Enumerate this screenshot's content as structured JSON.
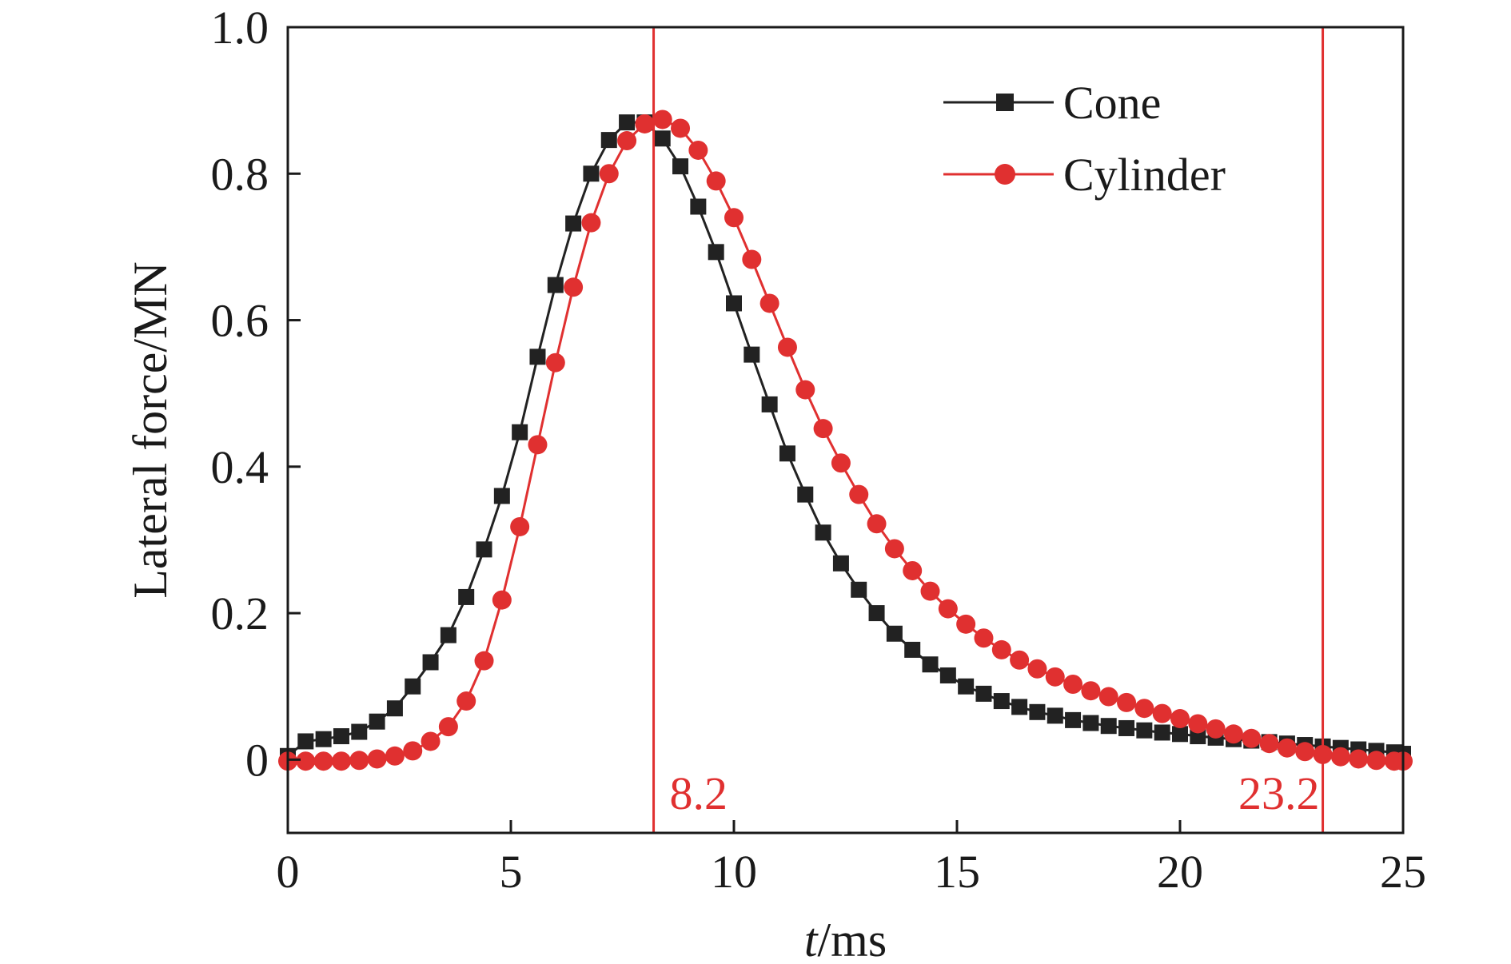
{
  "chart_data": {
    "type": "line",
    "xlabel_italic": "t",
    "xlabel_rest": "/ms",
    "ylabel": "Lateral force/MN",
    "xlim": [
      0,
      25
    ],
    "ylim": [
      -0.1,
      1.0
    ],
    "xticks": [
      0,
      5,
      10,
      15,
      20,
      25
    ],
    "xtick_labels": [
      "0",
      "5",
      "10",
      "15",
      "20",
      "25"
    ],
    "yticks": [
      0,
      0.2,
      0.4,
      0.6,
      0.8,
      1.0
    ],
    "ytick_labels": [
      "0",
      "0.2",
      "0.4",
      "0.6",
      "0.8",
      "1.0"
    ],
    "grid": false,
    "legend_position": "top-right",
    "series": [
      {
        "name": "Cone",
        "color": "#222222",
        "marker": "square",
        "x": [
          0,
          0.4,
          0.8,
          1.2,
          1.6,
          2.0,
          2.4,
          2.8,
          3.2,
          3.6,
          4.0,
          4.4,
          4.8,
          5.2,
          5.6,
          6.0,
          6.4,
          6.8,
          7.2,
          7.6,
          8.0,
          8.4,
          8.8,
          9.2,
          9.6,
          10.0,
          10.4,
          10.8,
          11.2,
          11.6,
          12.0,
          12.4,
          12.8,
          13.2,
          13.6,
          14.0,
          14.4,
          14.8,
          15.2,
          15.6,
          16.0,
          16.4,
          16.8,
          17.2,
          17.6,
          18.0,
          18.4,
          18.8,
          19.2,
          19.6,
          20.0,
          20.4,
          20.8,
          21.2,
          21.6,
          22.0,
          22.4,
          22.8,
          23.2,
          23.6,
          24.0,
          24.4,
          24.8,
          25.0
        ],
        "y": [
          0.005,
          0.025,
          0.028,
          0.032,
          0.038,
          0.052,
          0.07,
          0.1,
          0.133,
          0.17,
          0.222,
          0.287,
          0.36,
          0.447,
          0.55,
          0.648,
          0.732,
          0.8,
          0.846,
          0.87,
          0.87,
          0.848,
          0.81,
          0.755,
          0.693,
          0.623,
          0.553,
          0.485,
          0.418,
          0.362,
          0.31,
          0.268,
          0.232,
          0.2,
          0.172,
          0.15,
          0.13,
          0.115,
          0.1,
          0.09,
          0.08,
          0.072,
          0.065,
          0.06,
          0.054,
          0.05,
          0.046,
          0.043,
          0.04,
          0.037,
          0.035,
          0.032,
          0.03,
          0.028,
          0.026,
          0.024,
          0.022,
          0.02,
          0.018,
          0.016,
          0.014,
          0.012,
          0.01,
          0.008
        ]
      },
      {
        "name": "Cylinder",
        "color": "#e03030",
        "marker": "circle",
        "x": [
          0,
          0.4,
          0.8,
          1.2,
          1.6,
          2.0,
          2.4,
          2.8,
          3.2,
          3.6,
          4.0,
          4.4,
          4.8,
          5.2,
          5.6,
          6.0,
          6.4,
          6.8,
          7.2,
          7.6,
          8.0,
          8.4,
          8.8,
          9.2,
          9.6,
          10.0,
          10.4,
          10.8,
          11.2,
          11.6,
          12.0,
          12.4,
          12.8,
          13.2,
          13.6,
          14.0,
          14.4,
          14.8,
          15.2,
          15.6,
          16.0,
          16.4,
          16.8,
          17.2,
          17.6,
          18.0,
          18.4,
          18.8,
          19.2,
          19.6,
          20.0,
          20.4,
          20.8,
          21.2,
          21.6,
          22.0,
          22.4,
          22.8,
          23.2,
          23.6,
          24.0,
          24.4,
          24.8,
          25.0
        ],
        "y": [
          -0.002,
          -0.002,
          -0.002,
          -0.002,
          -0.001,
          0.001,
          0.005,
          0.012,
          0.025,
          0.045,
          0.08,
          0.135,
          0.218,
          0.318,
          0.43,
          0.542,
          0.645,
          0.733,
          0.8,
          0.845,
          0.868,
          0.874,
          0.862,
          0.832,
          0.79,
          0.74,
          0.683,
          0.623,
          0.563,
          0.505,
          0.452,
          0.405,
          0.362,
          0.322,
          0.288,
          0.258,
          0.23,
          0.206,
          0.185,
          0.166,
          0.15,
          0.136,
          0.124,
          0.113,
          0.103,
          0.094,
          0.086,
          0.078,
          0.07,
          0.063,
          0.056,
          0.049,
          0.042,
          0.035,
          0.029,
          0.022,
          0.016,
          0.011,
          0.007,
          0.004,
          0.001,
          -0.001,
          -0.002,
          -0.002
        ]
      }
    ],
    "vlines": [
      {
        "x": 8.2,
        "label": "8.2",
        "color": "#e03030"
      },
      {
        "x": 23.2,
        "label": "23.2",
        "color": "#e03030"
      }
    ]
  }
}
